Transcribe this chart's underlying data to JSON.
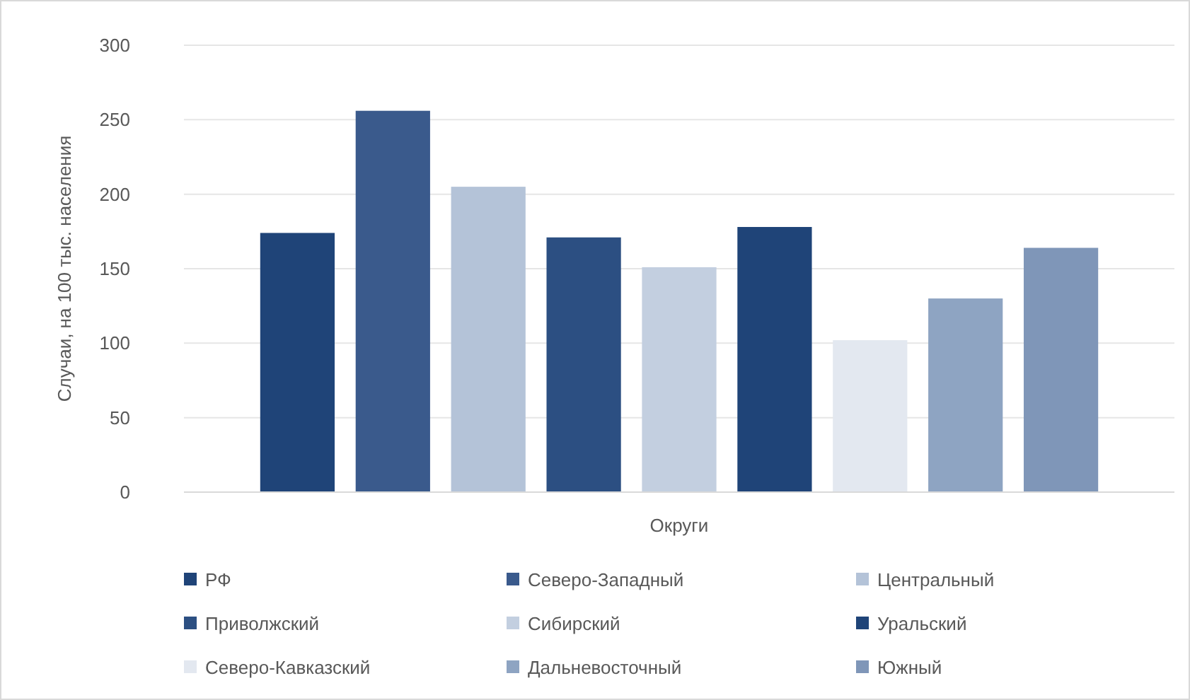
{
  "chart_data": {
    "type": "bar",
    "xlabel": "Округи",
    "ylabel": "Случаи, на 100 тыс. населения",
    "categories": [
      null
    ],
    "series": [
      {
        "name": "РФ",
        "color": "#1f4478",
        "values": [
          174
        ]
      },
      {
        "name": "Северо-Западный",
        "color": "#3a5a8c",
        "values": [
          256
        ]
      },
      {
        "name": "Центральный",
        "color": "#b4c3d8",
        "values": [
          205
        ]
      },
      {
        "name": "Приволжский",
        "color": "#2c4f82",
        "values": [
          171
        ]
      },
      {
        "name": "Сибирский",
        "color": "#c3cfe0",
        "values": [
          151
        ]
      },
      {
        "name": "Уральский",
        "color": "#1f4478",
        "values": [
          178
        ]
      },
      {
        "name": "Северо-Кавказский",
        "color": "#e3e8f0",
        "values": [
          102
        ]
      },
      {
        "name": "Дальневосточный",
        "color": "#8ea4c2",
        "values": [
          130
        ]
      },
      {
        "name": "Южный",
        "color": "#7f96b8",
        "values": [
          164
        ]
      }
    ],
    "ylim": [
      0,
      300
    ],
    "yticks": [
      0,
      50,
      100,
      150,
      200,
      250,
      300
    ],
    "grid": "y",
    "legend": "bottom"
  }
}
